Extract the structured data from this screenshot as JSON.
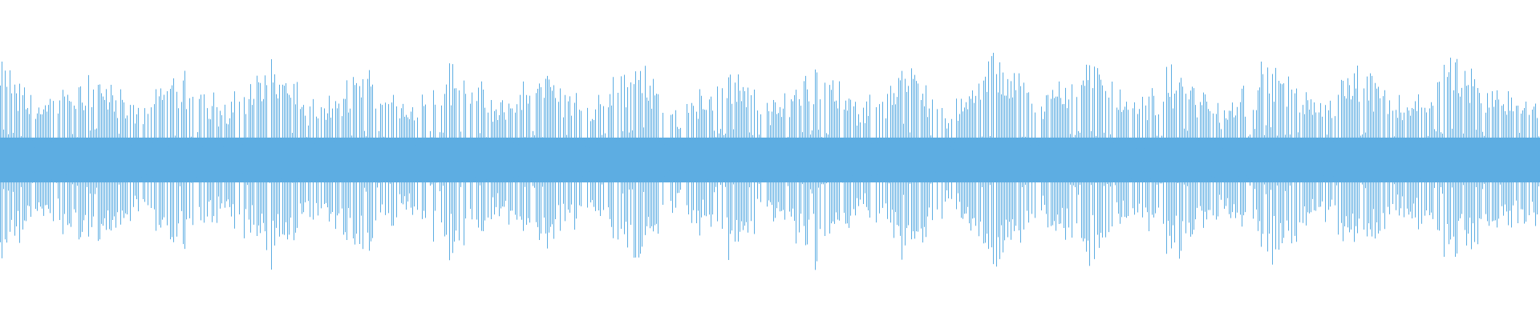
{
  "waveform": {
    "color": "#5dade2",
    "background": "#ffffff",
    "envelope": [
      0.95,
      0.55,
      0.95,
      0.5,
      0.85,
      0.55,
      1.0,
      0.5,
      0.9,
      0.55,
      0.95,
      0.55,
      0.9,
      0.5,
      1.05,
      0.45,
      0.95,
      0.55,
      1.0,
      0.5,
      0.95,
      0.5,
      1.05,
      0.6,
      1.05,
      0.55,
      0.95,
      0.5,
      1.0,
      0.55,
      0.9,
      0.55,
      0.95,
      0.7
    ]
  }
}
